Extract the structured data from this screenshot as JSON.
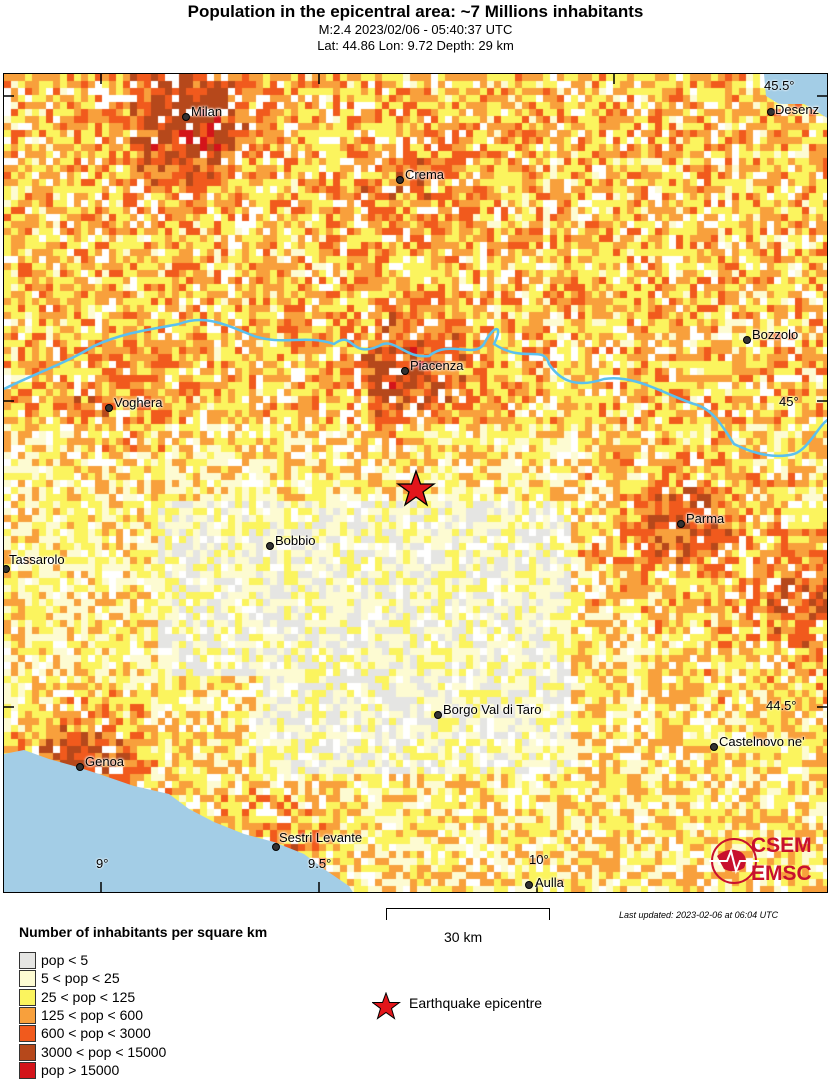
{
  "header": {
    "title": "Population in the epicentral area: ~7 Millions inhabitants",
    "line1": "M:2.4 2023/02/06 - 05:40:37 UTC",
    "line2": "Lat: 44.86 Lon: 9.72 Depth: 29 km"
  },
  "map": {
    "cities": [
      "Milan",
      "Crema",
      "Piacenza",
      "Voghera",
      "Bozzolo",
      "Parma",
      "Bobbio",
      "Tassarolo",
      "Borgo Val di Taro",
      "Castelnovo ne'",
      "Genoa",
      "Sestri Levante",
      "Aulla",
      "Desenz"
    ],
    "lat_ticks": [
      "45.5°",
      "45°",
      "44.5°"
    ],
    "lon_ticks": [
      "9°",
      "9.5°",
      "10°"
    ],
    "epicenter": {
      "lat": 44.86,
      "lon": 9.72
    },
    "colors": {
      "sea": "#a3cde6",
      "river": "#5bc0ee",
      "epicenter": "#e3161b"
    },
    "logo": {
      "top": "CSEM",
      "bottom": "EMSC",
      "color": "#c8102e"
    }
  },
  "scale": {
    "label": "30 km"
  },
  "updated": "Last updated: 2023-02-06 at 06:04 UTC",
  "legend": {
    "title": "Number of inhabitants per square km",
    "items": [
      {
        "label": "pop < 5",
        "color": "#e5e5e3"
      },
      {
        "label": "5 < pop < 25",
        "color": "#fdfbd2"
      },
      {
        "label": "25 < pop < 125",
        "color": "#fbf45e"
      },
      {
        "label": "125 < pop < 600",
        "color": "#f8a03c"
      },
      {
        "label": "600 < pop < 3000",
        "color": "#f15a1d"
      },
      {
        "label": "3000 < pop < 15000",
        "color": "#b6481b"
      },
      {
        "label": "pop > 15000",
        "color": "#d4141a"
      }
    ],
    "epicentre_label": "Earthquake epicentre"
  }
}
